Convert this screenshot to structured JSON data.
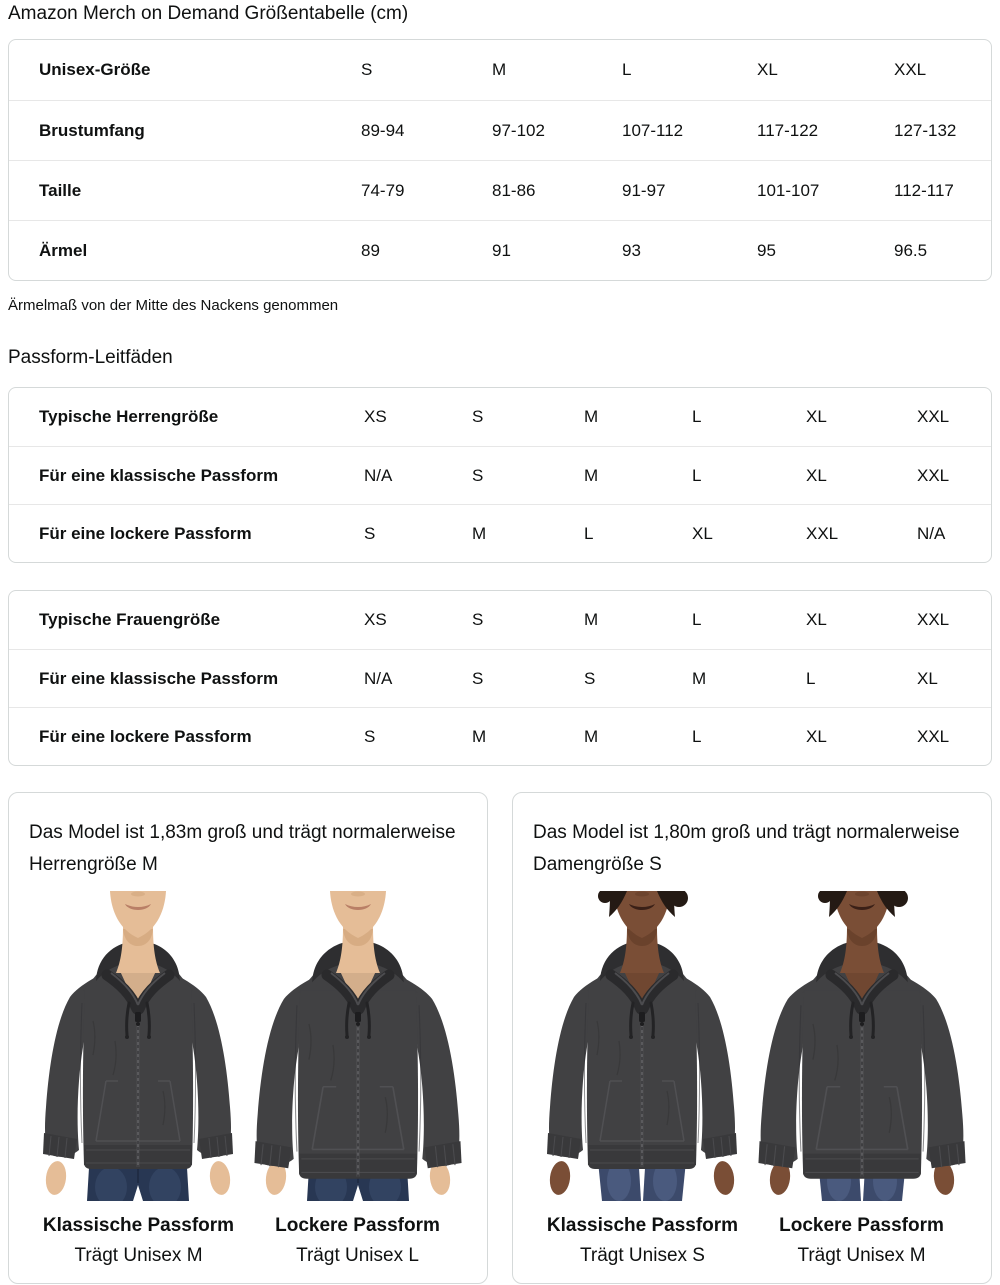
{
  "page": {
    "title": "Amazon Merch on Demand Größentabelle (cm)",
    "note": "Ärmelmaß von der Mitte des Nackens genommen",
    "fit_guides_heading": "Passform-Leitfäden"
  },
  "size_table": {
    "header": {
      "label": "Unisex-Größe",
      "cols": [
        "S",
        "M",
        "L",
        "XL",
        "XXL"
      ]
    },
    "rows": [
      {
        "label": "Brustumfang",
        "values": [
          "89-94",
          "97-102",
          "107-112",
          "117-122",
          "127-132"
        ]
      },
      {
        "label": "Taille",
        "values": [
          "74-79",
          "81-86",
          "91-97",
          "101-107",
          "112-117"
        ]
      },
      {
        "label": "Ärmel",
        "values": [
          "89",
          "91",
          "93",
          "95",
          "96.5"
        ]
      }
    ]
  },
  "mens_fit_table": {
    "rows": [
      {
        "label": "Typische Herrengröße",
        "values": [
          "XS",
          "S",
          "M",
          "L",
          "XL",
          "XXL"
        ]
      },
      {
        "label": "Für eine klassische Passform",
        "values": [
          "N/A",
          "S",
          "M",
          "L",
          "XL",
          "XXL"
        ]
      },
      {
        "label": "Für eine lockere Passform",
        "values": [
          "S",
          "M",
          "L",
          "XL",
          "XXL",
          "N/A"
        ]
      }
    ]
  },
  "womens_fit_table": {
    "rows": [
      {
        "label": "Typische Frauengröße",
        "values": [
          "XS",
          "S",
          "M",
          "L",
          "XL",
          "XXL"
        ]
      },
      {
        "label": "Für eine klassische Passform",
        "values": [
          "N/A",
          "S",
          "S",
          "M",
          "L",
          "XL"
        ]
      },
      {
        "label": "Für eine lockere Passform",
        "values": [
          "S",
          "M",
          "M",
          "L",
          "XL",
          "XXL"
        ]
      }
    ]
  },
  "model_cards": [
    {
      "description": "Das Model ist 1,83m groß und trägt normalerweise Herrengröße M",
      "figures": [
        {
          "fit_label": "Klassische Passform",
          "size_label": "Trägt Unisex M",
          "variant": "male-classic"
        },
        {
          "fit_label": "Lockere Passform",
          "size_label": "Trägt Unisex L",
          "variant": "male-loose"
        }
      ]
    },
    {
      "description": "Das Model ist 1,80m groß und trägt normalerweise Damengröße S",
      "figures": [
        {
          "fit_label": "Klassische Passform",
          "size_label": "Trägt Unisex S",
          "variant": "female-classic"
        },
        {
          "fit_label": "Lockere Passform",
          "size_label": "Trägt Unisex M",
          "variant": "female-loose"
        }
      ]
    }
  ],
  "colors": {
    "text": "#0F1111",
    "table_border": "#D5D9D9",
    "row_divider": "#E7E7E7",
    "hoodie": "#414143",
    "hoodie_dark": "#2E2E30",
    "hoodie_trim": "#39393B",
    "hoodie_stitch": "#525255",
    "male_skin": "#E5BD97",
    "male_skin_shadow": "#C99B70",
    "male_lips": "#B97F66",
    "male_denim": "#283753",
    "male_denim_light": "#3E5174",
    "female_skin": "#7A4E36",
    "female_skin_shadow": "#5A3622",
    "female_lips": "#3A2017",
    "female_denim": "#3C4A6B",
    "female_denim_light": "#5B6F96",
    "female_hair": "#241A14"
  }
}
